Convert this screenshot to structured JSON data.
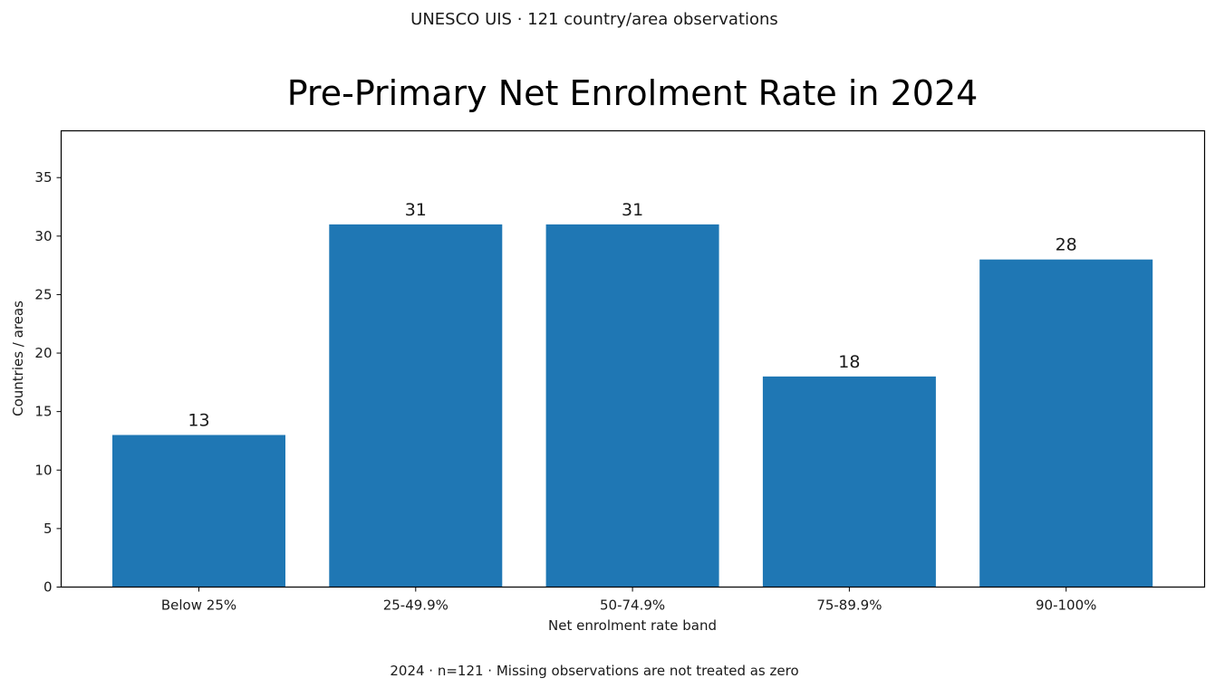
{
  "chart_data": {
    "type": "bar",
    "suptitle": "UNESCO UIS · 121 country/area observations",
    "title": "Pre-Primary Net Enrolment Rate in 2024",
    "xlabel": "Net enrolment rate band",
    "ylabel": "Countries / areas",
    "footer": "2024 · n=121 · Missing observations are not treated as zero",
    "categories": [
      "Below 25%",
      "25-49.9%",
      "50-74.9%",
      "75-89.9%",
      "90-100%"
    ],
    "values": [
      13,
      31,
      31,
      18,
      28
    ],
    "ylim": [
      0,
      39
    ],
    "yticks": [
      0,
      5,
      10,
      15,
      20,
      25,
      30,
      35
    ],
    "bar_color": "#1f77b4",
    "grid": false,
    "legend": "none"
  }
}
